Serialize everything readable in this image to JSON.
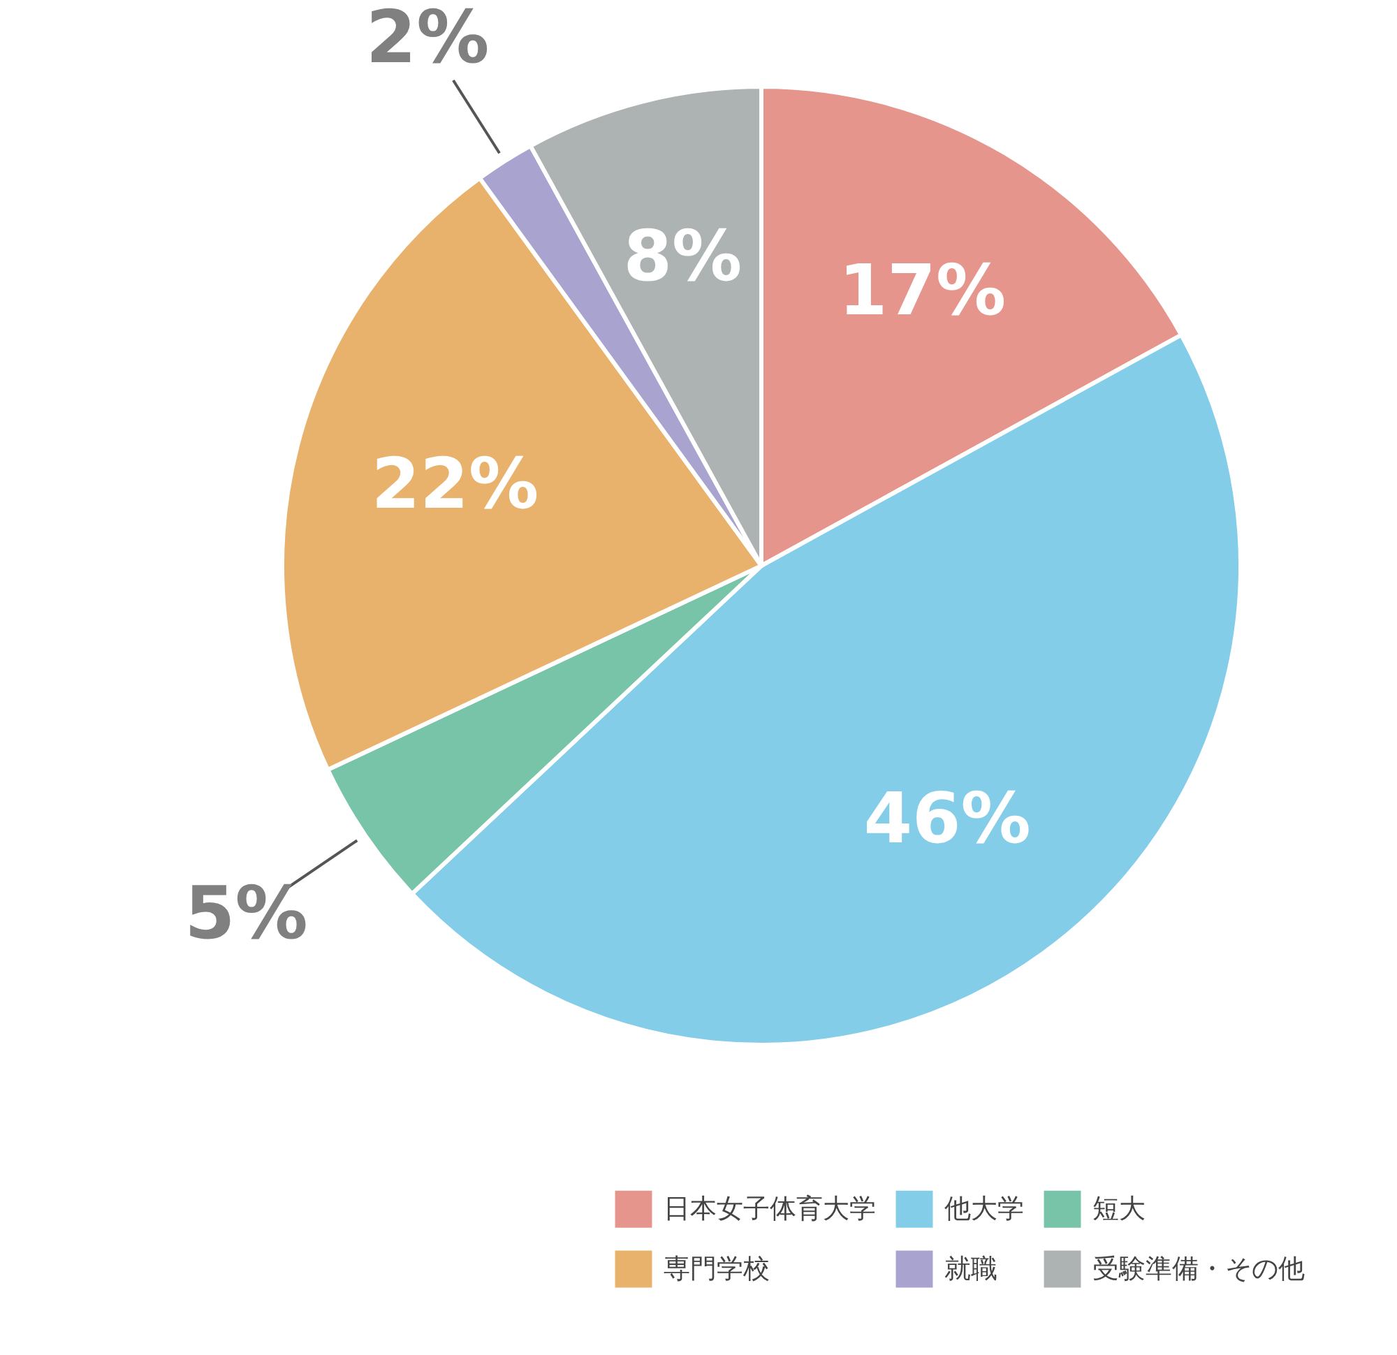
{
  "chart_data": {
    "type": "pie",
    "categories": [
      "日本女子体育大学",
      "他大学",
      "短大",
      "専門学校",
      "就職",
      "受験準備・その他"
    ],
    "values": [
      17,
      46,
      5,
      22,
      2,
      8
    ],
    "value_labels": [
      "17%",
      "46%",
      "5%",
      "22%",
      "2%",
      "8%"
    ],
    "colors": [
      "#e6958c",
      "#84cde8",
      "#77c4a9",
      "#e8b26d",
      "#a9a3cf",
      "#adb2b3"
    ],
    "legend": "bottom right"
  }
}
